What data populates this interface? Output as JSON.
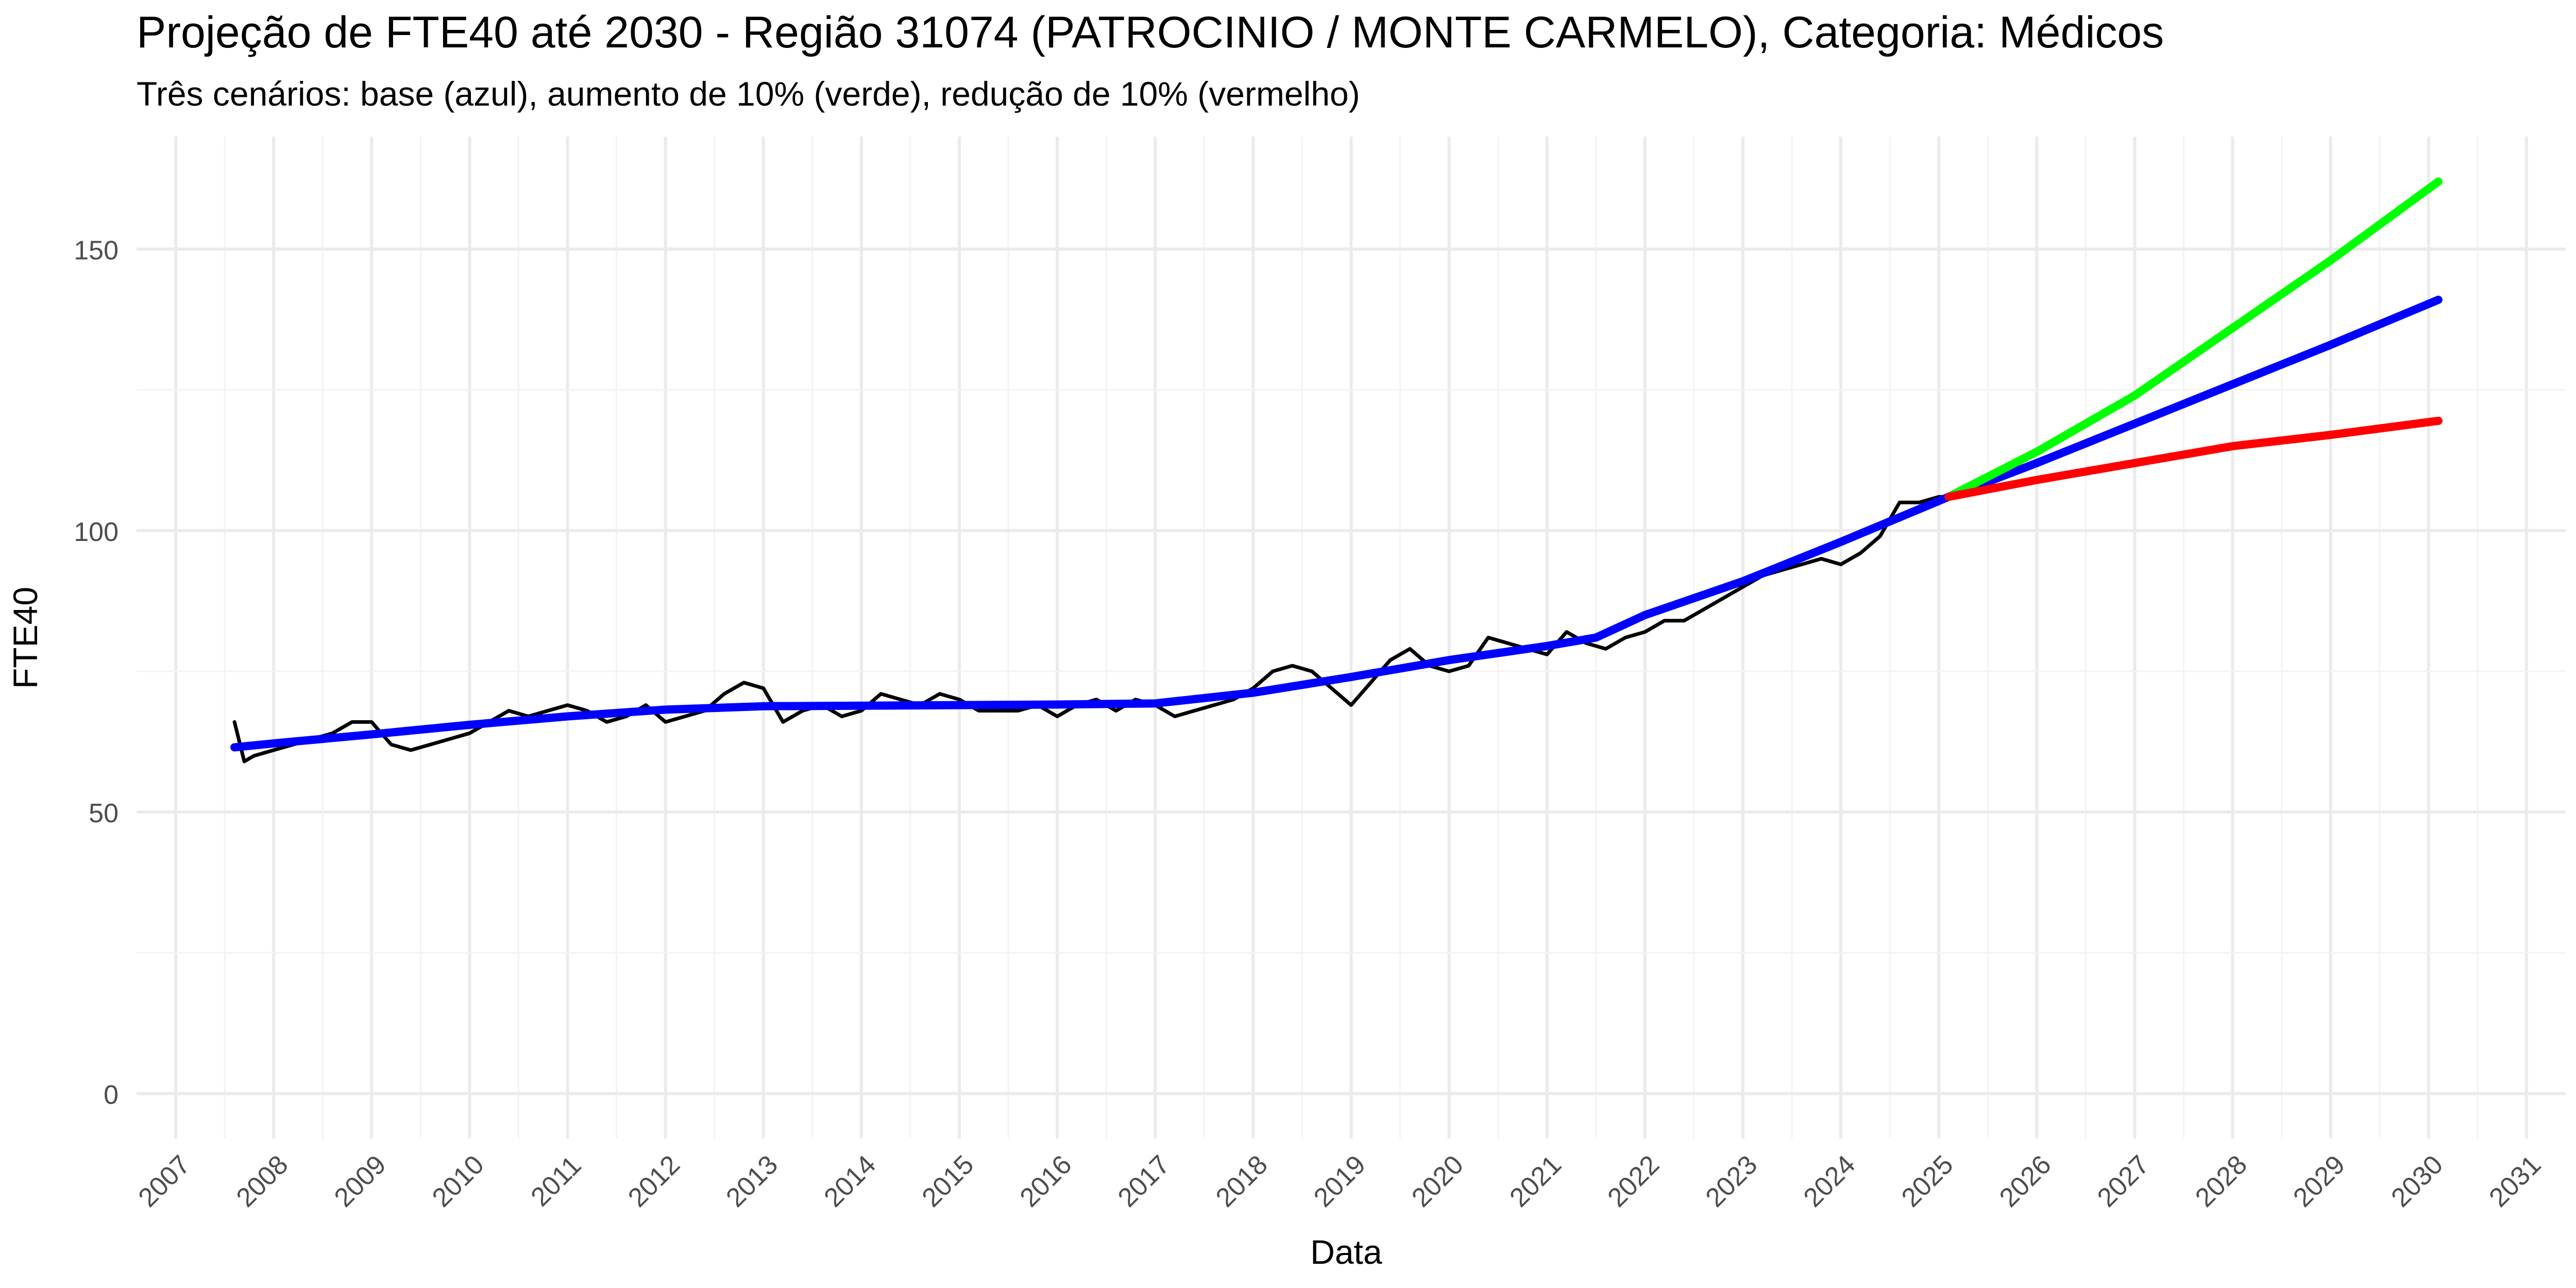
{
  "chart_data": {
    "type": "line",
    "title": "Projeção de FTE40 até 2030 - Região 31074 (PATROCINIO / MONTE CARMELO), Categoria: Médicos",
    "subtitle": "Três cenários: base (azul), aumento de 10% (verde), redução de 10% (vermelho)",
    "xlabel": "Data",
    "ylabel": "FTE40",
    "xlim": [
      2006.6,
      2031.4
    ],
    "ylim": [
      -8,
      170
    ],
    "x_ticks": [
      "2007",
      "2008",
      "2009",
      "2010",
      "2011",
      "2012",
      "2013",
      "2014",
      "2015",
      "2016",
      "2017",
      "2018",
      "2019",
      "2020",
      "2021",
      "2022",
      "2023",
      "2024",
      "2025",
      "2026",
      "2027",
      "2028",
      "2029",
      "2030",
      "2031"
    ],
    "y_ticks": [
      0,
      50,
      100,
      150
    ],
    "grid": true,
    "legend": "none",
    "series": [
      {
        "color": "#000000",
        "x": [
          2007.6,
          2007.7,
          2007.8,
          2008.0,
          2008.2,
          2008.4,
          2008.6,
          2008.8,
          2009.0,
          2009.2,
          2009.4,
          2009.6,
          2009.8,
          2010.0,
          2010.2,
          2010.4,
          2010.6,
          2010.8,
          2011.0,
          2011.2,
          2011.4,
          2011.6,
          2011.8,
          2012.0,
          2012.2,
          2012.4,
          2012.6,
          2012.8,
          2013.0,
          2013.2,
          2013.4,
          2013.6,
          2013.8,
          2014.0,
          2014.2,
          2014.4,
          2014.6,
          2014.8,
          2015.0,
          2015.2,
          2015.4,
          2015.6,
          2015.8,
          2016.0,
          2016.2,
          2016.4,
          2016.6,
          2016.8,
          2017.0,
          2017.2,
          2017.4,
          2017.6,
          2017.8,
          2018.0,
          2018.2,
          2018.4,
          2018.6,
          2018.8,
          2019.0,
          2019.2,
          2019.4,
          2019.6,
          2019.8,
          2020.0,
          2020.2,
          2020.4,
          2020.6,
          2020.8,
          2021.0,
          2021.2,
          2021.4,
          2021.6,
          2021.8,
          2022.0,
          2022.2,
          2022.4,
          2022.6,
          2022.8,
          2023.0,
          2023.2,
          2023.4,
          2023.6,
          2023.8,
          2024.0,
          2024.2,
          2024.4,
          2024.6,
          2024.8,
          2025.0,
          2025.2
        ],
        "y": [
          66,
          59,
          60,
          61,
          62,
          63,
          64,
          66,
          66,
          62,
          61,
          62,
          63,
          64,
          66,
          68,
          67,
          68,
          69,
          68,
          66,
          67,
          69,
          66,
          67,
          68,
          71,
          73,
          72,
          66,
          68,
          69,
          67,
          68,
          71,
          70,
          69,
          71,
          70,
          68,
          68,
          68,
          69,
          67,
          69,
          70,
          68,
          70,
          69,
          67,
          68,
          69,
          70,
          72,
          75,
          76,
          75,
          72,
          69,
          73,
          77,
          79,
          76,
          75,
          76,
          81,
          80,
          79,
          78,
          82,
          80,
          79,
          81,
          82,
          84,
          84,
          86,
          88,
          90,
          92,
          93,
          94,
          95,
          94,
          96,
          99,
          105,
          105,
          106,
          106
        ]
      },
      {
        "color": "#0000ff",
        "x": [
          2007.6,
          2008.0,
          2009.0,
          2010.0,
          2011.0,
          2012.0,
          2013.0,
          2014.0,
          2015.0,
          2016.0,
          2017.0,
          2018.0,
          2019.0,
          2020.0,
          2021.0,
          2021.5,
          2022.0,
          2023.0,
          2024.0,
          2025.1,
          2026.0,
          2027.0,
          2028.0,
          2029.0,
          2030.1
        ],
        "y": [
          61.5,
          62.2,
          63.8,
          65.5,
          67.0,
          68.2,
          68.8,
          68.9,
          69.0,
          69.1,
          69.3,
          71.2,
          74.0,
          77.0,
          79.5,
          81.0,
          85.0,
          91.0,
          98.0,
          106.0,
          112.0,
          119.0,
          126.0,
          133.0,
          141.0
        ]
      },
      {
        "color": "#00ff00",
        "x": [
          2025.1,
          2026.0,
          2027.0,
          2028.0,
          2029.0,
          2030.1
        ],
        "y": [
          106.0,
          114.0,
          124.0,
          136.0,
          148.0,
          162.0
        ]
      },
      {
        "color": "#ff0000",
        "x": [
          2025.1,
          2026.0,
          2027.0,
          2028.0,
          2029.0,
          2030.1
        ],
        "y": [
          106.0,
          109.0,
          112.0,
          115.0,
          117.0,
          119.5
        ]
      }
    ]
  }
}
